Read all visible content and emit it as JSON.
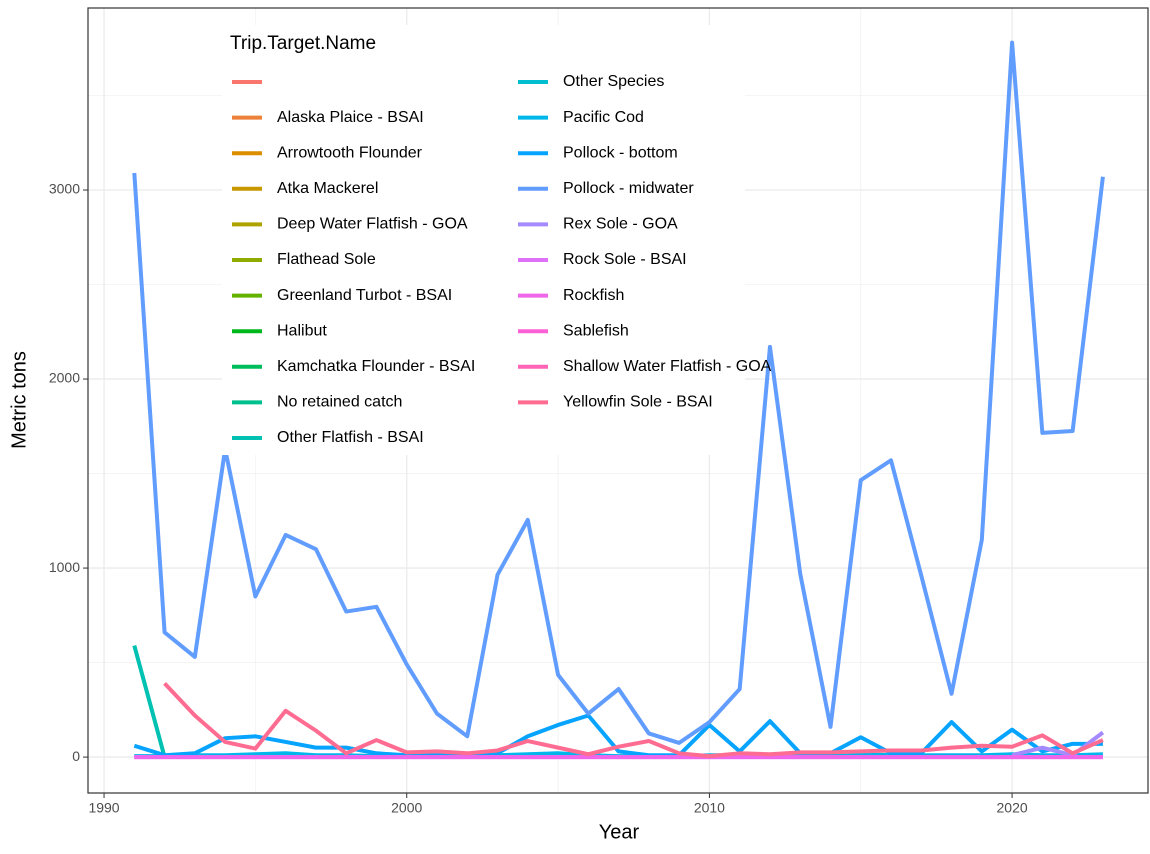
{
  "chart_data": {
    "type": "line",
    "x_label": "Year",
    "y_label": "Metric tons",
    "legend_title": "Trip.Target.Name",
    "legend": "top-left",
    "grid": true,
    "xlim": [
      1989.47,
      2024.49
    ],
    "ylim": [
      -190,
      3963
    ],
    "xticks": [
      1990,
      2000,
      2010,
      2020
    ],
    "yticks": [
      0,
      1000,
      2000,
      3000
    ],
    "xminorticks": [
      1995,
      2005,
      2015
    ],
    "yminorticks": [
      500,
      1500,
      2500,
      3500
    ],
    "x": [
      1991,
      1992,
      1993,
      1994,
      1995,
      1996,
      1997,
      1998,
      1999,
      2000,
      2001,
      2002,
      2003,
      2004,
      2005,
      2006,
      2007,
      2008,
      2009,
      2010,
      2011,
      2012,
      2013,
      2014,
      2015,
      2016,
      2017,
      2018,
      2019,
      2020,
      2021,
      2022,
      2023
    ],
    "series": [
      {
        "name": null,
        "color": "#F8766D",
        "values": [
          null,
          null,
          null,
          null,
          null,
          null,
          null,
          null,
          null,
          null,
          null,
          null,
          null,
          null,
          null,
          null,
          null,
          null,
          null,
          null,
          null,
          null,
          null,
          null,
          null,
          null,
          null,
          null,
          null,
          null,
          null,
          null,
          null
        ]
      },
      {
        "name": "Alaska Plaice - BSAI",
        "color": "#EC8239",
        "values": [
          null,
          null,
          null,
          null,
          null,
          null,
          null,
          null,
          null,
          null,
          null,
          null,
          null,
          null,
          null,
          null,
          null,
          null,
          null,
          null,
          null,
          null,
          null,
          null,
          null,
          null,
          null,
          null,
          null,
          null,
          null,
          null,
          null
        ]
      },
      {
        "name": "Arrowtooth Flounder",
        "color": "#DB8E00",
        "values": [
          null,
          null,
          null,
          null,
          null,
          null,
          null,
          null,
          null,
          null,
          null,
          null,
          null,
          null,
          null,
          null,
          null,
          null,
          null,
          null,
          null,
          null,
          null,
          null,
          null,
          null,
          null,
          null,
          null,
          null,
          null,
          null,
          null
        ]
      },
      {
        "name": "Atka Mackerel",
        "color": "#C79800",
        "values": [
          null,
          null,
          null,
          null,
          null,
          null,
          null,
          null,
          null,
          null,
          null,
          null,
          null,
          null,
          null,
          null,
          null,
          null,
          null,
          null,
          null,
          null,
          null,
          null,
          null,
          null,
          null,
          null,
          null,
          null,
          null,
          null,
          null
        ]
      },
      {
        "name": "Deep Water Flatfish - GOA",
        "color": "#AEA200",
        "values": [
          null,
          null,
          null,
          null,
          null,
          null,
          null,
          null,
          null,
          null,
          null,
          null,
          null,
          null,
          null,
          null,
          null,
          null,
          null,
          null,
          null,
          null,
          null,
          null,
          null,
          null,
          null,
          null,
          null,
          null,
          null,
          null,
          null
        ]
      },
      {
        "name": "Flathead Sole",
        "color": "#8FAA00",
        "values": [
          null,
          null,
          null,
          null,
          null,
          null,
          null,
          null,
          null,
          null,
          null,
          null,
          null,
          null,
          null,
          null,
          null,
          null,
          null,
          null,
          null,
          null,
          null,
          null,
          null,
          null,
          null,
          null,
          null,
          null,
          null,
          null,
          null
        ]
      },
      {
        "name": "Greenland Turbot - BSAI",
        "color": "#64B200",
        "values": [
          null,
          null,
          null,
          null,
          null,
          null,
          null,
          null,
          null,
          null,
          null,
          null,
          null,
          null,
          null,
          null,
          null,
          null,
          null,
          null,
          null,
          null,
          null,
          null,
          null,
          null,
          null,
          null,
          null,
          null,
          null,
          null,
          null
        ]
      },
      {
        "name": "Halibut",
        "color": "#00B81B",
        "values": [
          null,
          null,
          null,
          null,
          null,
          null,
          null,
          null,
          null,
          null,
          null,
          null,
          null,
          null,
          null,
          null,
          null,
          null,
          null,
          null,
          null,
          null,
          null,
          null,
          null,
          null,
          null,
          null,
          null,
          null,
          null,
          null,
          null
        ]
      },
      {
        "name": "Kamchatka Flounder - BSAI",
        "color": "#00BD5C",
        "values": [
          null,
          null,
          null,
          null,
          null,
          null,
          null,
          null,
          null,
          null,
          null,
          null,
          null,
          null,
          null,
          null,
          null,
          null,
          null,
          null,
          null,
          null,
          null,
          null,
          null,
          null,
          null,
          null,
          null,
          null,
          null,
          null,
          null
        ]
      },
      {
        "name": "No retained catch",
        "color": "#00C08E",
        "values": [
          null,
          null,
          null,
          null,
          null,
          null,
          null,
          null,
          null,
          null,
          null,
          null,
          null,
          null,
          null,
          null,
          null,
          null,
          null,
          null,
          null,
          null,
          null,
          null,
          null,
          null,
          null,
          null,
          null,
          null,
          null,
          null,
          null
        ]
      },
      {
        "name": "Other Flatfish - BSAI",
        "color": "#00C1B2",
        "values": [
          590,
          0,
          null,
          null,
          null,
          null,
          null,
          null,
          null,
          null,
          null,
          null,
          null,
          null,
          null,
          null,
          null,
          null,
          null,
          null,
          null,
          null,
          null,
          null,
          null,
          null,
          null,
          null,
          null,
          null,
          null,
          null,
          null
        ]
      },
      {
        "name": "Other Species",
        "color": "#00BDD0",
        "values": [
          null,
          null,
          null,
          null,
          null,
          null,
          null,
          null,
          null,
          null,
          null,
          null,
          null,
          null,
          null,
          null,
          null,
          null,
          null,
          null,
          null,
          null,
          null,
          null,
          null,
          null,
          null,
          null,
          null,
          null,
          null,
          null,
          null
        ]
      },
      {
        "name": "Pacific Cod",
        "color": "#00B6EB",
        "values": [
          5,
          5,
          10,
          10,
          15,
          20,
          10,
          10,
          5,
          5,
          10,
          5,
          10,
          15,
          20,
          10,
          5,
          5,
          5,
          10,
          10,
          10,
          10,
          10,
          15,
          10,
          10,
          10,
          10,
          15,
          10,
          10,
          15
        ]
      },
      {
        "name": "Pollock - bottom",
        "color": "#06A4FF",
        "values": [
          60,
          10,
          20,
          100,
          110,
          80,
          50,
          50,
          20,
          10,
          20,
          15,
          20,
          110,
          170,
          220,
          30,
          10,
          10,
          170,
          30,
          190,
          20,
          20,
          105,
          20,
          20,
          185,
          30,
          145,
          30,
          70,
          70
        ]
      },
      {
        "name": "Pollock - midwater",
        "color": "#619CFF",
        "values": [
          3090,
          660,
          530,
          1630,
          850,
          1175,
          1100,
          770,
          795,
          490,
          230,
          110,
          965,
          1255,
          435,
          230,
          360,
          125,
          75,
          185,
          360,
          2170,
          970,
          160,
          1465,
          1570,
          960,
          335,
          1150,
          3780,
          1715,
          1725,
          3070
        ]
      },
      {
        "name": "Rex Sole - GOA",
        "color": "#A58AFF",
        "values": [
          null,
          null,
          null,
          null,
          null,
          null,
          null,
          null,
          null,
          null,
          null,
          null,
          null,
          null,
          null,
          null,
          null,
          null,
          null,
          null,
          null,
          null,
          null,
          null,
          null,
          null,
          null,
          null,
          null,
          10,
          50,
          10,
          130
        ]
      },
      {
        "name": "Rock Sole - BSAI",
        "color": "#DF70F8",
        "values": [
          0,
          0,
          0,
          0,
          0,
          0,
          0,
          0,
          0,
          0,
          0,
          0,
          0,
          0,
          0,
          0,
          0,
          0,
          0,
          0,
          0,
          0,
          0,
          0,
          0,
          0,
          0,
          0,
          0,
          0,
          0,
          0,
          0
        ]
      },
      {
        "name": "Rockfish",
        "color": "#F066EA",
        "values": [
          0,
          0,
          0,
          0,
          0,
          0,
          0,
          0,
          0,
          0,
          0,
          0,
          0,
          0,
          0,
          0,
          0,
          0,
          0,
          0,
          0,
          0,
          0,
          0,
          0,
          0,
          0,
          0,
          0,
          0,
          0,
          0,
          0
        ]
      },
      {
        "name": "Sablefish",
        "color": "#FB61D7",
        "values": [
          null,
          null,
          null,
          null,
          null,
          null,
          null,
          null,
          null,
          null,
          null,
          null,
          null,
          null,
          null,
          null,
          null,
          null,
          null,
          null,
          null,
          null,
          null,
          null,
          null,
          null,
          null,
          null,
          null,
          null,
          null,
          null,
          null
        ]
      },
      {
        "name": "Shallow Water Flatfish - GOA",
        "color": "#FF63B6",
        "values": [
          null,
          null,
          null,
          null,
          null,
          null,
          null,
          null,
          null,
          null,
          null,
          null,
          null,
          null,
          null,
          null,
          null,
          null,
          null,
          null,
          null,
          null,
          null,
          null,
          null,
          null,
          null,
          null,
          null,
          null,
          null,
          null,
          null
        ]
      },
      {
        "name": "Yellowfin Sole - BSAI",
        "color": "#FF6C91",
        "values": [
          null,
          390,
          220,
          80,
          45,
          245,
          140,
          20,
          90,
          25,
          30,
          20,
          35,
          85,
          50,
          15,
          55,
          85,
          20,
          5,
          20,
          15,
          25,
          25,
          30,
          35,
          35,
          50,
          60,
          55,
          115,
          20,
          90
        ]
      }
    ]
  }
}
